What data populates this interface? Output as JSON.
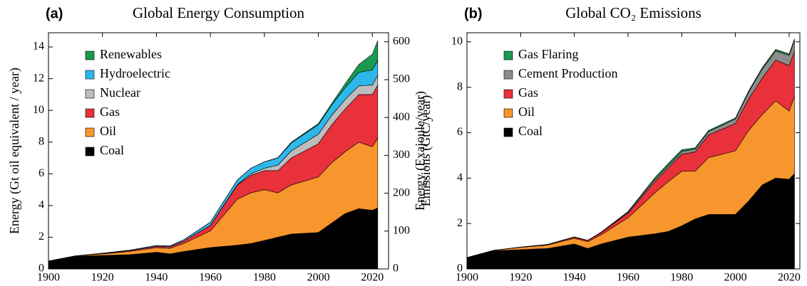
{
  "chart_data": [
    {
      "type": "area",
      "panel": "(a)",
      "title": "Global Energy Consumption",
      "ylabel": "Energy (Gt oil equivalent / year)",
      "y2label": "Energy (Exajoule/year)",
      "x": [
        1900,
        1910,
        1920,
        1930,
        1940,
        1945,
        1950,
        1960,
        1970,
        1975,
        1980,
        1985,
        1990,
        2000,
        2005,
        2010,
        2015,
        2020,
        2022
      ],
      "xlim": [
        1900,
        2026
      ],
      "xticks": [
        1900,
        1920,
        1940,
        1960,
        1980,
        2000,
        2020
      ],
      "ylim": [
        0,
        14.9
      ],
      "yticks": [
        0,
        2,
        4,
        6,
        8,
        10,
        12,
        14
      ],
      "y2lim": [
        0,
        624
      ],
      "y2ticks": [
        0,
        100,
        200,
        300,
        400,
        500,
        600
      ],
      "legend": "upper left",
      "series": [
        {
          "name": "Coal",
          "color": "#000000",
          "values": [
            0.5,
            0.8,
            0.85,
            0.9,
            1.05,
            0.95,
            1.1,
            1.35,
            1.5,
            1.6,
            1.8,
            2.0,
            2.2,
            2.3,
            2.9,
            3.5,
            3.8,
            3.7,
            3.85
          ]
        },
        {
          "name": "Oil",
          "color": "#f7962d",
          "values": [
            0,
            0.02,
            0.1,
            0.2,
            0.3,
            0.35,
            0.5,
            1.05,
            2.9,
            3.2,
            3.2,
            2.8,
            3.1,
            3.5,
            3.8,
            3.9,
            4.2,
            4.0,
            4.4
          ]
        },
        {
          "name": "Gas",
          "color": "#e8313a",
          "values": [
            0,
            0,
            0.02,
            0.05,
            0.08,
            0.1,
            0.15,
            0.35,
            0.9,
            1.1,
            1.2,
            1.4,
            1.7,
            2.1,
            2.4,
            2.7,
            3.0,
            3.3,
            3.35
          ]
        },
        {
          "name": "Nuclear",
          "color": "#bdbdbd",
          "values": [
            0,
            0,
            0,
            0,
            0,
            0,
            0,
            0,
            0.02,
            0.1,
            0.15,
            0.35,
            0.45,
            0.6,
            0.6,
            0.6,
            0.55,
            0.6,
            0.6
          ]
        },
        {
          "name": "Hydroelectric",
          "color": "#2db7ea",
          "values": [
            0,
            0,
            0.02,
            0.03,
            0.05,
            0.05,
            0.08,
            0.2,
            0.3,
            0.35,
            0.4,
            0.45,
            0.5,
            0.6,
            0.65,
            0.75,
            0.85,
            0.95,
            0.95
          ]
        },
        {
          "name": "Renewables",
          "color": "#1a9a4e",
          "values": [
            0,
            0,
            0,
            0,
            0,
            0,
            0,
            0,
            0,
            0,
            0.01,
            0.02,
            0.05,
            0.07,
            0.1,
            0.25,
            0.5,
            1.0,
            1.25
          ]
        }
      ]
    },
    {
      "type": "area",
      "panel": "(b)",
      "title": "Global CO₂ Emissions",
      "ylabel": "Emissions (GtC/year)",
      "x": [
        1900,
        1910,
        1920,
        1930,
        1940,
        1945,
        1950,
        1960,
        1970,
        1975,
        1980,
        1985,
        1990,
        2000,
        2005,
        2010,
        2015,
        2020,
        2022
      ],
      "xlim": [
        1900,
        2024
      ],
      "xticks": [
        1900,
        1920,
        1940,
        1960,
        1980,
        2000,
        2020
      ],
      "ylim": [
        0,
        10.4
      ],
      "yticks": [
        0,
        2,
        4,
        6,
        8,
        10
      ],
      "legend": "upper left",
      "series": [
        {
          "name": "Coal",
          "color": "#000000",
          "values": [
            0.5,
            0.8,
            0.85,
            0.9,
            1.1,
            0.9,
            1.1,
            1.4,
            1.55,
            1.65,
            1.9,
            2.2,
            2.4,
            2.4,
            3.0,
            3.7,
            4.0,
            3.95,
            4.2
          ]
        },
        {
          "name": "Oil",
          "color": "#f7962d",
          "values": [
            0,
            0.02,
            0.1,
            0.15,
            0.25,
            0.3,
            0.4,
            0.85,
            1.8,
            2.2,
            2.4,
            2.1,
            2.5,
            2.8,
            3.1,
            3.1,
            3.4,
            3.0,
            3.4
          ]
        },
        {
          "name": "Gas",
          "color": "#e8313a",
          "values": [
            0,
            0,
            0.01,
            0.02,
            0.05,
            0.05,
            0.1,
            0.2,
            0.5,
            0.6,
            0.75,
            0.85,
            1.0,
            1.2,
            1.4,
            1.6,
            1.8,
            2.0,
            2.0
          ]
        },
        {
          "name": "Cement Production",
          "color": "#8c8c8c",
          "values": [
            0,
            0,
            0,
            0.01,
            0.01,
            0.01,
            0.02,
            0.05,
            0.1,
            0.1,
            0.12,
            0.13,
            0.15,
            0.2,
            0.3,
            0.4,
            0.4,
            0.45,
            0.45
          ]
        },
        {
          "name": "Gas Flaring",
          "color": "#1a9a4e",
          "values": [
            0,
            0,
            0,
            0,
            0,
            0,
            0,
            0.03,
            0.07,
            0.1,
            0.08,
            0.05,
            0.05,
            0.05,
            0.06,
            0.07,
            0.07,
            0.07,
            0.08
          ]
        }
      ]
    }
  ]
}
